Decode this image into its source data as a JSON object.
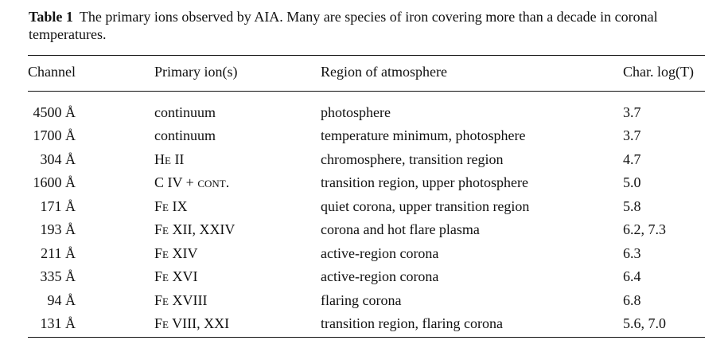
{
  "caption": {
    "label": "Table 1",
    "text": "The primary ions observed by AIA. Many are species of iron covering more than a decade in coronal temperatures."
  },
  "headers": {
    "channel": "Channel",
    "ion": "Primary ion(s)",
    "region": "Region of atmosphere",
    "temp": "Char. log(T)"
  },
  "rows": [
    {
      "channel": "4500 Å",
      "ion": "continuum",
      "region": "photosphere",
      "temp": "3.7"
    },
    {
      "channel": "1700 Å",
      "ion": "continuum",
      "region": "temperature minimum, photosphere",
      "temp": "3.7"
    },
    {
      "channel": "304 Å",
      "ion": "He II",
      "region": "chromosphere, transition region",
      "temp": "4.7"
    },
    {
      "channel": "1600 Å",
      "ion": "C IV + cont.",
      "region": "transition region, upper photosphere",
      "temp": "5.0"
    },
    {
      "channel": "171 Å",
      "ion": "Fe IX",
      "region": "quiet corona, upper transition region",
      "temp": "5.8"
    },
    {
      "channel": "193 Å",
      "ion": "Fe XII, XXIV",
      "region": "corona and hot flare plasma",
      "temp": "6.2, 7.3"
    },
    {
      "channel": "211 Å",
      "ion": "Fe XIV",
      "region": "active-region corona",
      "temp": "6.3"
    },
    {
      "channel": "335 Å",
      "ion": "Fe XVI",
      "region": "active-region corona",
      "temp": "6.4"
    },
    {
      "channel": "94 Å",
      "ion": "Fe XVIII",
      "region": "flaring corona",
      "temp": "6.8"
    },
    {
      "channel": "131 Å",
      "ion": "Fe VIII, XXI",
      "region": "transition region, flaring corona",
      "temp": "5.6, 7.0"
    }
  ]
}
